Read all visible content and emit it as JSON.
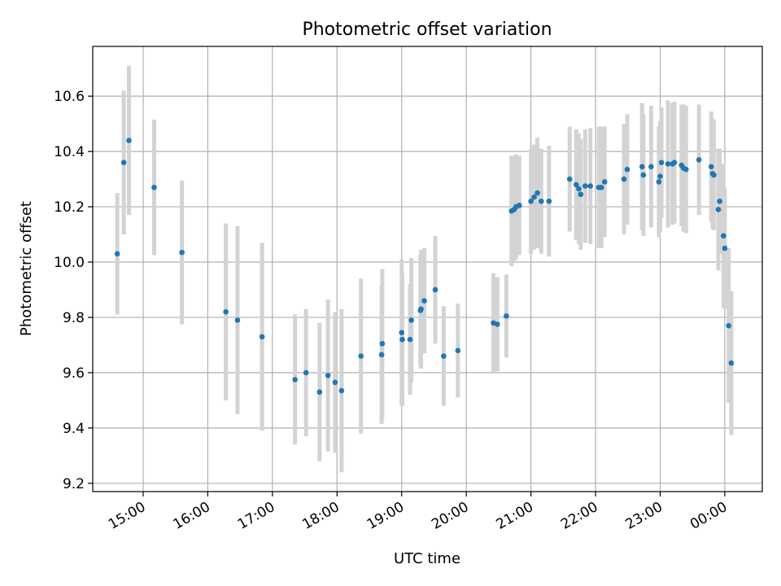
{
  "chart_data": {
    "type": "scatter",
    "title": "Photometric offset variation",
    "xlabel": "UTC time",
    "ylabel": "Photometric offset",
    "grid": true,
    "xlim_hours": [
      14.22,
      24.58
    ],
    "ylim": [
      9.17,
      10.78
    ],
    "x_ticks": [
      {
        "hour": 15,
        "label": "15:00"
      },
      {
        "hour": 16,
        "label": "16:00"
      },
      {
        "hour": 17,
        "label": "17:00"
      },
      {
        "hour": 18,
        "label": "18:00"
      },
      {
        "hour": 19,
        "label": "19:00"
      },
      {
        "hour": 20,
        "label": "20:00"
      },
      {
        "hour": 21,
        "label": "21:00"
      },
      {
        "hour": 22,
        "label": "22:00"
      },
      {
        "hour": 23,
        "label": "23:00"
      },
      {
        "hour": 24,
        "label": "00:00"
      }
    ],
    "y_ticks": [
      {
        "value": 9.2,
        "label": "9.2"
      },
      {
        "value": 9.4,
        "label": "9.4"
      },
      {
        "value": 9.6,
        "label": "9.6"
      },
      {
        "value": 9.8,
        "label": "9.8"
      },
      {
        "value": 10.0,
        "label": "10.0"
      },
      {
        "value": 10.2,
        "label": "10.2"
      },
      {
        "value": 10.4,
        "label": "10.4"
      },
      {
        "value": 10.6,
        "label": "10.6"
      }
    ],
    "point_color": "#1f77b4",
    "errorbar_color": "#d3d3d3",
    "series": [
      {
        "name": "offset",
        "points": [
          {
            "t": 14.6,
            "y": 10.03,
            "err": 0.22
          },
          {
            "t": 14.7,
            "y": 10.36,
            "err": 0.26
          },
          {
            "t": 14.78,
            "y": 10.44,
            "err": 0.27
          },
          {
            "t": 15.17,
            "y": 10.27,
            "err": 0.245
          },
          {
            "t": 15.6,
            "y": 10.035,
            "err": 0.26
          },
          {
            "t": 16.28,
            "y": 9.82,
            "err": 0.32
          },
          {
            "t": 16.46,
            "y": 9.79,
            "err": 0.34
          },
          {
            "t": 16.84,
            "y": 9.73,
            "err": 0.34
          },
          {
            "t": 17.35,
            "y": 9.575,
            "err": 0.235
          },
          {
            "t": 17.52,
            "y": 9.6,
            "err": 0.23
          },
          {
            "t": 17.73,
            "y": 9.53,
            "err": 0.25
          },
          {
            "t": 17.86,
            "y": 9.59,
            "err": 0.275
          },
          {
            "t": 17.97,
            "y": 9.565,
            "err": 0.255
          },
          {
            "t": 18.07,
            "y": 9.535,
            "err": 0.295
          },
          {
            "t": 18.37,
            "y": 9.66,
            "err": 0.28
          },
          {
            "t": 18.69,
            "y": 9.665,
            "err": 0.25
          },
          {
            "t": 18.7,
            "y": 9.705,
            "err": 0.27
          },
          {
            "t": 19.0,
            "y": 9.745,
            "err": 0.265
          },
          {
            "t": 19.01,
            "y": 9.72,
            "err": 0.24
          },
          {
            "t": 19.13,
            "y": 9.72,
            "err": 0.2
          },
          {
            "t": 19.15,
            "y": 9.79,
            "err": 0.225
          },
          {
            "t": 19.29,
            "y": 9.825,
            "err": 0.2
          },
          {
            "t": 19.3,
            "y": 9.83,
            "err": 0.215
          },
          {
            "t": 19.35,
            "y": 9.86,
            "err": 0.19
          },
          {
            "t": 19.52,
            "y": 9.9,
            "err": 0.195
          },
          {
            "t": 19.65,
            "y": 9.66,
            "err": 0.18
          },
          {
            "t": 19.87,
            "y": 9.68,
            "err": 0.17
          },
          {
            "t": 20.42,
            "y": 9.78,
            "err": 0.18
          },
          {
            "t": 20.48,
            "y": 9.775,
            "err": 0.17
          },
          {
            "t": 20.62,
            "y": 9.805,
            "err": 0.15
          },
          {
            "t": 20.7,
            "y": 10.185,
            "err": 0.2
          },
          {
            "t": 20.74,
            "y": 10.19,
            "err": 0.19
          },
          {
            "t": 20.77,
            "y": 10.2,
            "err": 0.19
          },
          {
            "t": 20.82,
            "y": 10.205,
            "err": 0.18
          },
          {
            "t": 21.0,
            "y": 10.22,
            "err": 0.19
          },
          {
            "t": 21.05,
            "y": 10.235,
            "err": 0.19
          },
          {
            "t": 21.1,
            "y": 10.25,
            "err": 0.2
          },
          {
            "t": 21.16,
            "y": 10.22,
            "err": 0.19
          },
          {
            "t": 21.28,
            "y": 10.22,
            "err": 0.2
          },
          {
            "t": 21.6,
            "y": 10.3,
            "err": 0.19
          },
          {
            "t": 21.7,
            "y": 10.28,
            "err": 0.2
          },
          {
            "t": 21.74,
            "y": 10.265,
            "err": 0.2
          },
          {
            "t": 21.77,
            "y": 10.245,
            "err": 0.2
          },
          {
            "t": 21.84,
            "y": 10.275,
            "err": 0.205
          },
          {
            "t": 21.92,
            "y": 10.275,
            "err": 0.21
          },
          {
            "t": 22.05,
            "y": 10.27,
            "err": 0.22
          },
          {
            "t": 22.09,
            "y": 10.27,
            "err": 0.22
          },
          {
            "t": 22.14,
            "y": 10.29,
            "err": 0.2
          },
          {
            "t": 22.44,
            "y": 10.3,
            "err": 0.2
          },
          {
            "t": 22.49,
            "y": 10.335,
            "err": 0.2
          },
          {
            "t": 22.72,
            "y": 10.345,
            "err": 0.23
          },
          {
            "t": 22.74,
            "y": 10.315,
            "err": 0.22
          },
          {
            "t": 22.86,
            "y": 10.345,
            "err": 0.22
          },
          {
            "t": 22.98,
            "y": 10.29,
            "err": 0.2
          },
          {
            "t": 23.0,
            "y": 10.31,
            "err": 0.2
          },
          {
            "t": 23.02,
            "y": 10.36,
            "err": 0.2
          },
          {
            "t": 23.12,
            "y": 10.355,
            "err": 0.23
          },
          {
            "t": 23.19,
            "y": 10.355,
            "err": 0.22
          },
          {
            "t": 23.22,
            "y": 10.36,
            "err": 0.22
          },
          {
            "t": 23.33,
            "y": 10.35,
            "err": 0.22
          },
          {
            "t": 23.36,
            "y": 10.34,
            "err": 0.23
          },
          {
            "t": 23.4,
            "y": 10.335,
            "err": 0.23
          },
          {
            "t": 23.6,
            "y": 10.37,
            "err": 0.2
          },
          {
            "t": 23.79,
            "y": 10.345,
            "err": 0.2
          },
          {
            "t": 23.81,
            "y": 10.32,
            "err": 0.2
          },
          {
            "t": 23.83,
            "y": 10.315,
            "err": 0.2
          },
          {
            "t": 23.9,
            "y": 10.19,
            "err": 0.22
          },
          {
            "t": 23.92,
            "y": 10.22,
            "err": 0.19
          },
          {
            "t": 23.98,
            "y": 10.095,
            "err": 0.26
          },
          {
            "t": 24.0,
            "y": 10.05,
            "err": 0.22
          },
          {
            "t": 24.06,
            "y": 9.77,
            "err": 0.28
          },
          {
            "t": 24.1,
            "y": 9.635,
            "err": 0.26
          }
        ]
      }
    ]
  }
}
